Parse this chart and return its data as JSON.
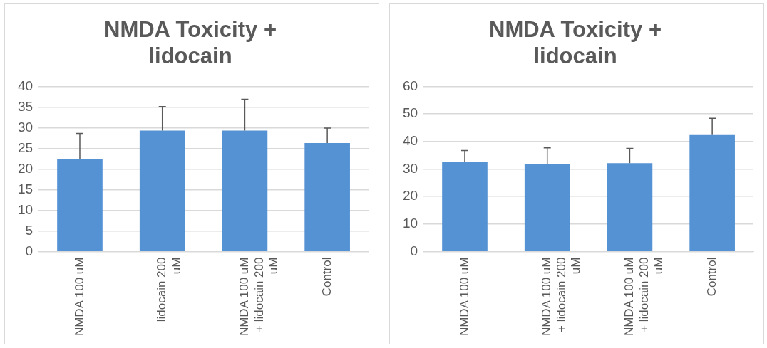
{
  "chart_data": [
    {
      "type": "bar",
      "title": "NMDA Toxicity + lidocain",
      "categories": [
        "NMDA 100 uM",
        "lidocain 200 uM",
        "NMDA 100 uM + lidocain 200 uM",
        "Control"
      ],
      "values": [
        22.5,
        29.3,
        29.3,
        26.3
      ],
      "color": "#5592d4",
      "errors": [
        [
          22.5,
          28.6
        ],
        [
          29.3,
          35.1
        ],
        [
          29.3,
          36.9
        ],
        [
          26.3,
          29.9
        ]
      ],
      "ylim": [
        0,
        40
      ],
      "yticks": [
        0,
        5,
        10,
        15,
        20,
        25,
        30,
        35,
        40
      ],
      "grid": "y",
      "legend": false
    },
    {
      "type": "bar",
      "title": "NMDA Toxicity + lidocain",
      "categories": [
        "NMDA 100 uM",
        "NMDA 100 uM + lidocain 200 uM",
        "NMDA 100 uM + lidocain 200 uM",
        "Control"
      ],
      "values": [
        32.5,
        31.7,
        32.1,
        42.6
      ],
      "color": "#5592d4",
      "errors": [
        [
          32.5,
          36.7
        ],
        [
          31.7,
          37.7
        ],
        [
          32.1,
          37.5
        ],
        [
          42.6,
          48.4
        ]
      ],
      "ylim": [
        0,
        60
      ],
      "yticks": [
        0,
        10,
        20,
        30,
        40,
        50,
        60
      ],
      "grid": "y",
      "legend": false
    }
  ]
}
